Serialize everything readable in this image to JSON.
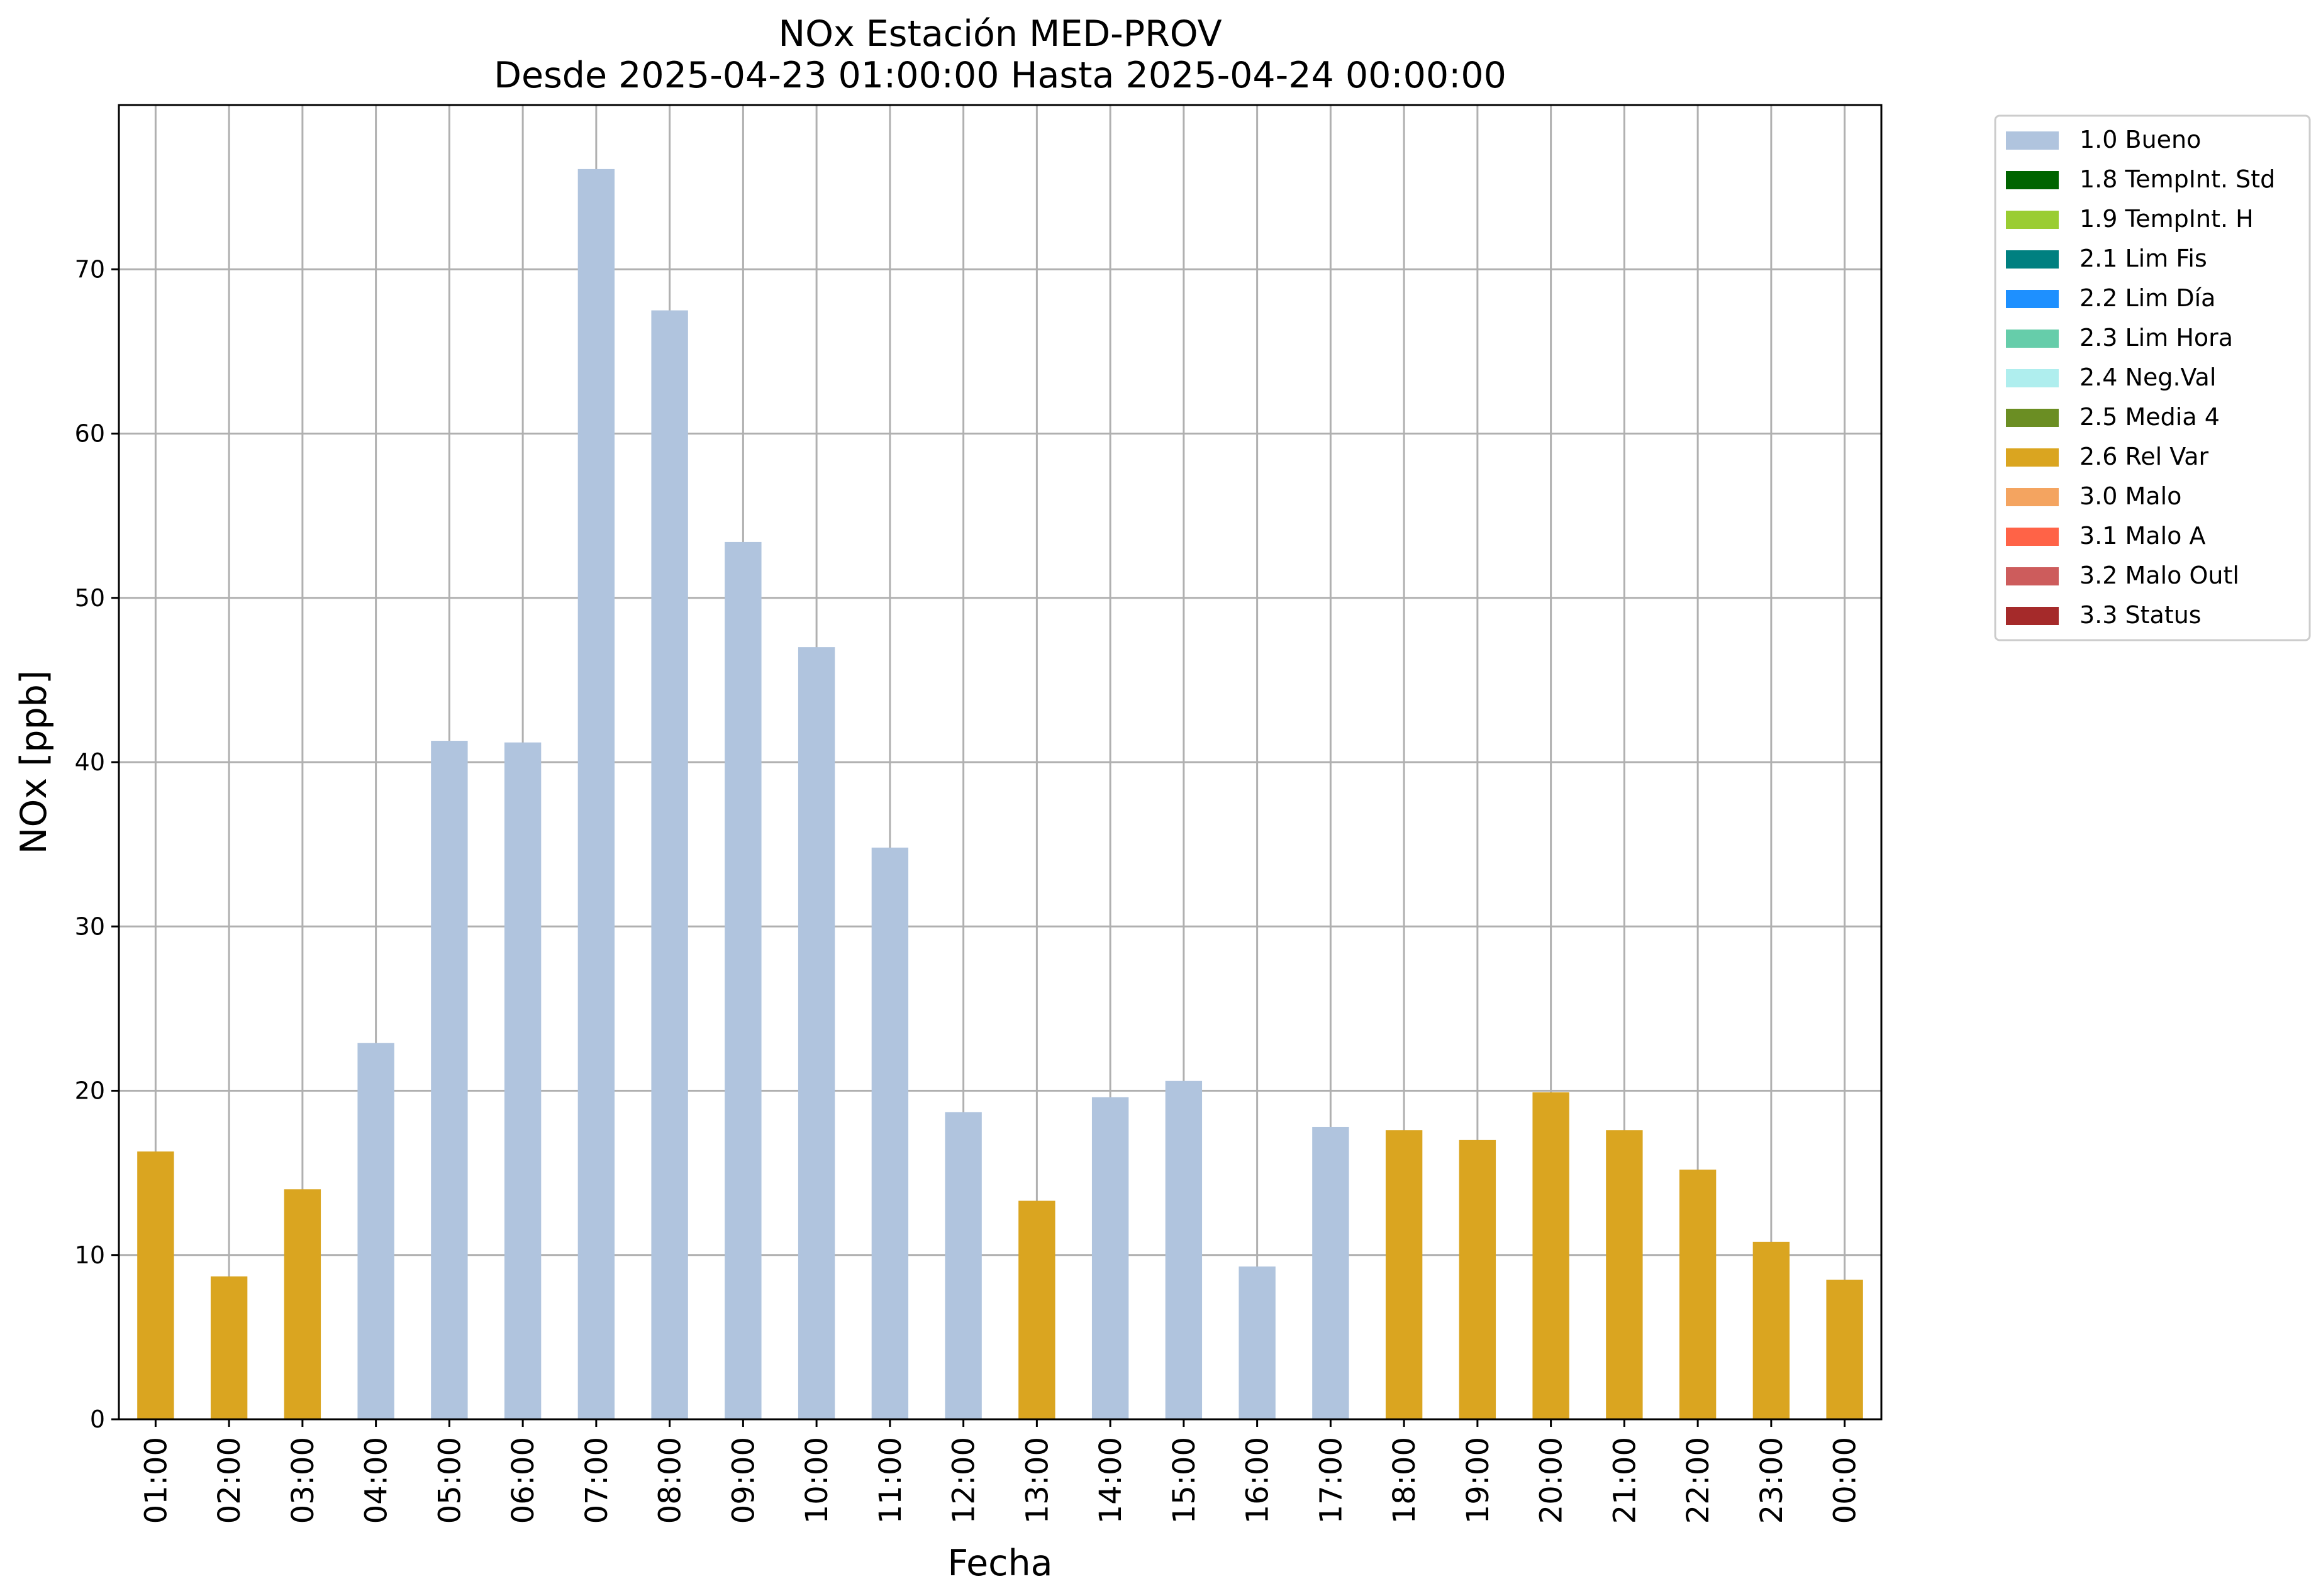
{
  "chart_data": {
    "type": "bar",
    "title": "NOx Estación MED-PROV",
    "subtitle": "Desde 2025-04-23 01:00:00 Hasta 2025-04-24 00:00:00",
    "xlabel": "Fecha",
    "ylabel": "NOx [ppb]",
    "ylim": [
      0,
      80
    ],
    "yticks": [
      0,
      10,
      20,
      30,
      40,
      50,
      60,
      70
    ],
    "grid": true,
    "legend_position": "outside-top-right",
    "categories": [
      "01:00",
      "02:00",
      "03:00",
      "04:00",
      "05:00",
      "06:00",
      "07:00",
      "08:00",
      "09:00",
      "10:00",
      "11:00",
      "12:00",
      "13:00",
      "14:00",
      "15:00",
      "16:00",
      "17:00",
      "18:00",
      "19:00",
      "20:00",
      "21:00",
      "22:00",
      "23:00",
      "00:00"
    ],
    "values": [
      16.3,
      8.7,
      14.0,
      22.9,
      41.3,
      41.2,
      76.1,
      67.5,
      53.4,
      47.0,
      34.8,
      18.7,
      13.3,
      19.6,
      20.6,
      9.3,
      17.8,
      17.6,
      17.0,
      19.9,
      17.6,
      15.2,
      10.8,
      8.5
    ],
    "flags": [
      "2.6 Rel Var",
      "2.6 Rel Var",
      "2.6 Rel Var",
      "1.0 Bueno",
      "1.0 Bueno",
      "1.0 Bueno",
      "1.0 Bueno",
      "1.0 Bueno",
      "1.0 Bueno",
      "1.0 Bueno",
      "1.0 Bueno",
      "1.0 Bueno",
      "2.6 Rel Var",
      "1.0 Bueno",
      "1.0 Bueno",
      "1.0 Bueno",
      "1.0 Bueno",
      "2.6 Rel Var",
      "2.6 Rel Var",
      "2.6 Rel Var",
      "2.6 Rel Var",
      "2.6 Rel Var",
      "2.6 Rel Var",
      "2.6 Rel Var"
    ],
    "legend": [
      {
        "label": "1.0 Bueno",
        "color": "#b0c4de"
      },
      {
        "label": "1.8 TempInt. Std",
        "color": "#006400"
      },
      {
        "label": "1.9 TempInt. H",
        "color": "#9acd32"
      },
      {
        "label": "2.1 Lim Fis",
        "color": "#008080"
      },
      {
        "label": "2.2 Lim Día",
        "color": "#1e90ff"
      },
      {
        "label": "2.3 Lim Hora",
        "color": "#66cdaa"
      },
      {
        "label": "2.4 Neg.Val",
        "color": "#afeeee"
      },
      {
        "label": "2.5 Media 4",
        "color": "#6b8e23"
      },
      {
        "label": "2.6 Rel Var",
        "color": "#daa520"
      },
      {
        "label": "3.0 Malo",
        "color": "#f4a460"
      },
      {
        "label": "3.1 Malo A",
        "color": "#ff6347"
      },
      {
        "label": "3.2 Malo Outl",
        "color": "#cd5c5c"
      },
      {
        "label": "3.3 Status",
        "color": "#a52a2a"
      }
    ]
  }
}
